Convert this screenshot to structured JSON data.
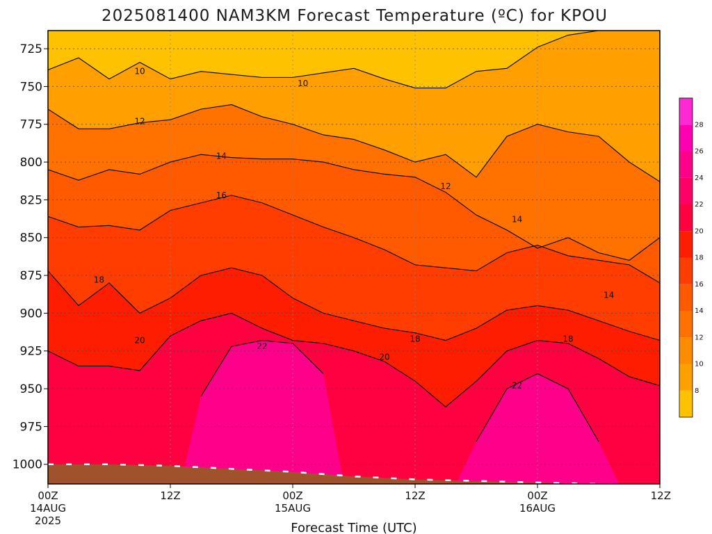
{
  "chart_data": {
    "type": "heatmap",
    "title": "2025081400 NAM3KM Forecast Temperature (ºC) for KPOU",
    "xlabel": "Forecast Time (UTC)",
    "ylabel": "",
    "y_axis": {
      "ticks": [
        "725",
        "750",
        "775",
        "800",
        "825",
        "850",
        "875",
        "900",
        "925",
        "950",
        "975",
        "1000"
      ],
      "range": [
        713,
        1013
      ],
      "inverted": true
    },
    "x_axis": {
      "range_hours": [
        0,
        60
      ],
      "ticks": [
        {
          "hour": 0,
          "label": "00Z",
          "label2": "14AUG",
          "label3": "2025"
        },
        {
          "hour": 12,
          "label": "12Z",
          "label2": "",
          "label3": ""
        },
        {
          "hour": 24,
          "label": "00Z",
          "label2": "15AUG",
          "label3": ""
        },
        {
          "hour": 36,
          "label": "12Z",
          "label2": "",
          "label3": ""
        },
        {
          "hour": 48,
          "label": "00Z",
          "label2": "16AUG",
          "label3": ""
        },
        {
          "hour": 60,
          "label": "12Z",
          "label2": "",
          "label3": ""
        }
      ]
    },
    "grid": true,
    "colorbar": {
      "placement": "right",
      "labels": [
        "8",
        "10",
        "12",
        "14",
        "16",
        "18",
        "20",
        "22",
        "24",
        "26",
        "28"
      ],
      "colors": [
        "#ffc200",
        "#ff9f00",
        "#ff8b00",
        "#ff7200",
        "#ff5a00",
        "#ff3d00",
        "#ff1d00",
        "#ff0040",
        "#ff0066",
        "#ff008a",
        "#ff00b0",
        "#ff28d2"
      ]
    },
    "contours": [
      {
        "value": 10,
        "label": "10",
        "pressure": [
          739,
          731,
          745,
          734,
          745,
          740,
          742,
          744,
          744,
          741,
          738,
          745,
          751,
          751,
          740,
          738,
          724,
          716,
          713,
          713,
          713
        ],
        "labels_at": [
          {
            "hour": 9,
            "pressure": 740
          },
          {
            "hour": 25,
            "pressure": 748
          }
        ]
      },
      {
        "value": 12,
        "label": "12",
        "pressure": [
          765,
          778,
          778,
          774,
          772,
          765,
          762,
          770,
          775,
          782,
          785,
          792,
          800,
          795,
          810,
          783,
          775,
          780,
          783,
          800,
          813
        ],
        "labels_at": [
          {
            "hour": 9,
            "pressure": 773
          },
          {
            "hour": 39,
            "pressure": 816
          }
        ]
      },
      {
        "value": 14,
        "label": "14",
        "pressure": [
          805,
          812,
          805,
          808,
          800,
          795,
          797,
          798,
          798,
          800,
          805,
          808,
          810,
          820,
          835,
          845,
          857,
          850,
          860,
          865,
          850
        ],
        "labels_at": [
          {
            "hour": 17,
            "pressure": 796
          },
          {
            "hour": 46,
            "pressure": 838
          },
          {
            "hour": 55,
            "pressure": 888
          }
        ]
      },
      {
        "value": 16,
        "label": "16",
        "pressure": [
          836,
          843,
          842,
          845,
          832,
          827,
          822,
          827,
          835,
          843,
          850,
          858,
          868,
          870,
          872,
          860,
          855,
          862,
          865,
          868,
          880
        ],
        "labels_at": [
          {
            "hour": 17,
            "pressure": 822
          }
        ]
      },
      {
        "value": 18,
        "label": "18",
        "pressure": [
          872,
          895,
          880,
          900,
          890,
          875,
          870,
          875,
          890,
          900,
          905,
          910,
          913,
          918,
          910,
          898,
          895,
          898,
          905,
          912,
          918
        ],
        "labels_at": [
          {
            "hour": 5,
            "pressure": 878
          },
          {
            "hour": 36,
            "pressure": 917
          },
          {
            "hour": 51,
            "pressure": 917
          }
        ]
      },
      {
        "value": 20,
        "label": "20",
        "pressure": [
          925,
          935,
          935,
          938,
          915,
          905,
          900,
          910,
          918,
          920,
          925,
          932,
          945,
          962,
          945,
          925,
          918,
          920,
          930,
          942,
          948
        ],
        "labels_at": [
          {
            "hour": 9,
            "pressure": 918
          },
          {
            "hour": 33,
            "pressure": 929
          }
        ]
      },
      {
        "value": 22,
        "label": "22",
        "pressure": [
          null,
          null,
          null,
          null,
          null,
          955,
          922,
          918,
          920,
          940,
          null,
          null,
          null,
          null,
          985,
          950,
          940,
          950,
          985,
          null,
          null
        ],
        "labels_at": [
          {
            "hour": 21,
            "pressure": 922
          },
          {
            "hour": 46,
            "pressure": 948
          }
        ]
      }
    ],
    "surface_pressure": [
      1000,
      1000,
      1001,
      1003,
      1005,
      1008,
      1010,
      1011,
      1012,
      1013,
      1014
    ]
  }
}
